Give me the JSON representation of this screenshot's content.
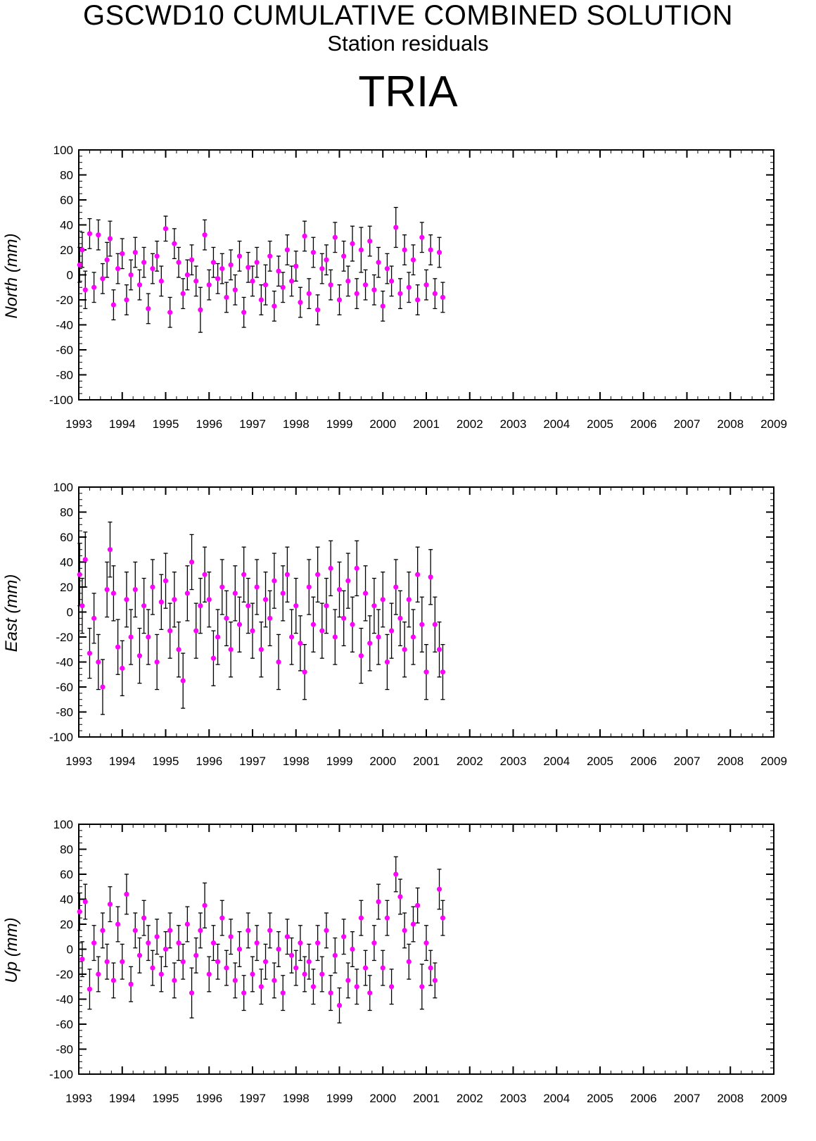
{
  "header": {
    "title": "GSCWD10 CUMULATIVE COMBINED SOLUTION",
    "subtitle": "Station residuals",
    "station": "TRIA"
  },
  "colors": {
    "marker": "#ff00ff",
    "errorbar": "#000000",
    "axis": "#000000"
  },
  "chart_data": [
    {
      "type": "scatter",
      "ylabel": "North (mm)",
      "xlim": [
        1993,
        2009
      ],
      "ylim": [
        -100,
        100
      ],
      "xticks": [
        "1993",
        "1994",
        "1995",
        "1996",
        "1997",
        "1998",
        "1999",
        "2000",
        "2001",
        "2002",
        "2003",
        "2004",
        "2005",
        "2006",
        "2007",
        "2008",
        "2009"
      ],
      "yticks": [
        "100",
        "80",
        "60",
        "40",
        "20",
        "0",
        "-20",
        "-40",
        "-60",
        "-80",
        "-100"
      ],
      "error_bars": true,
      "series": [
        {
          "x": [
            1993.02,
            1993.08,
            1993.15,
            1993.25,
            1993.35,
            1993.45,
            1993.55,
            1993.65,
            1993.72,
            1993.8,
            1993.9,
            1994.0,
            1994.1,
            1994.2,
            1994.3,
            1994.4,
            1994.5,
            1994.6,
            1994.7,
            1994.8,
            1994.9,
            1995.0,
            1995.1,
            1995.2,
            1995.3,
            1995.4,
            1995.5,
            1995.6,
            1995.7,
            1995.8,
            1995.9,
            1996.0,
            1996.1,
            1996.2,
            1996.3,
            1996.4,
            1996.5,
            1996.6,
            1996.7,
            1996.8,
            1996.9,
            1997.0,
            1997.1,
            1997.2,
            1997.3,
            1997.4,
            1997.5,
            1997.6,
            1997.7,
            1997.8,
            1997.9,
            1998.0,
            1998.1,
            1998.2,
            1998.3,
            1998.4,
            1998.5,
            1998.6,
            1998.7,
            1998.8,
            1998.9,
            1999.0,
            1999.1,
            1999.2,
            1999.3,
            1999.4,
            1999.5,
            1999.6,
            1999.7,
            1999.8,
            1999.9,
            2000.0,
            2000.1,
            2000.2,
            2000.3,
            2000.4,
            2000.5,
            2000.6,
            2000.7,
            2000.8,
            2000.9,
            2001.0,
            2001.1,
            2001.2,
            2001.3,
            2001.38
          ],
          "y": [
            8,
            20,
            -12,
            33,
            -10,
            32,
            -3,
            12,
            29,
            -24,
            5,
            17,
            -20,
            0,
            18,
            -8,
            10,
            -27,
            5,
            15,
            -5,
            37,
            -30,
            25,
            10,
            -15,
            0,
            12,
            -5,
            -28,
            32,
            -8,
            10,
            -3,
            5,
            -18,
            8,
            -12,
            15,
            -30,
            6,
            -5,
            10,
            -20,
            -8,
            15,
            -25,
            3,
            -10,
            20,
            -5,
            7,
            -22,
            31,
            -15,
            18,
            -28,
            5,
            12,
            -8,
            30,
            -20,
            15,
            -5,
            25,
            -15,
            20,
            -8,
            27,
            -12,
            10,
            -25,
            5,
            -5,
            38,
            -15,
            20,
            -10,
            12,
            -20,
            30,
            -8,
            20,
            -15,
            18,
            -18
          ],
          "err": [
            14,
            14,
            15,
            12,
            12,
            12,
            12,
            14,
            14,
            12,
            12,
            12,
            12,
            12,
            12,
            12,
            12,
            12,
            12,
            12,
            12,
            10,
            12,
            12,
            12,
            12,
            12,
            12,
            12,
            18,
            12,
            12,
            12,
            12,
            12,
            12,
            12,
            12,
            12,
            12,
            12,
            12,
            12,
            12,
            16,
            12,
            12,
            12,
            12,
            12,
            12,
            12,
            12,
            12,
            12,
            12,
            12,
            12,
            12,
            12,
            12,
            12,
            12,
            12,
            14,
            12,
            18,
            12,
            12,
            12,
            12,
            12,
            12,
            12,
            16,
            12,
            12,
            12,
            12,
            12,
            12,
            12,
            12,
            12,
            12,
            12
          ]
        }
      ]
    },
    {
      "type": "scatter",
      "ylabel": "East (mm)",
      "xlim": [
        1993,
        2009
      ],
      "ylim": [
        -100,
        100
      ],
      "xticks": [
        "1993",
        "1994",
        "1995",
        "1996",
        "1997",
        "1998",
        "1999",
        "2000",
        "2001",
        "2002",
        "2003",
        "2004",
        "2005",
        "2006",
        "2007",
        "2008",
        "2009"
      ],
      "yticks": [
        "100",
        "80",
        "60",
        "40",
        "20",
        "0",
        "-20",
        "-40",
        "-60",
        "-80",
        "-100"
      ],
      "error_bars": true,
      "series": [
        {
          "x": [
            1993.02,
            1993.08,
            1993.15,
            1993.25,
            1993.35,
            1993.45,
            1993.55,
            1993.65,
            1993.72,
            1993.8,
            1993.9,
            1994.0,
            1994.1,
            1994.2,
            1994.3,
            1994.4,
            1994.5,
            1994.6,
            1994.7,
            1994.8,
            1994.9,
            1995.0,
            1995.1,
            1995.2,
            1995.3,
            1995.4,
            1995.5,
            1995.6,
            1995.7,
            1995.8,
            1995.9,
            1996.0,
            1996.1,
            1996.2,
            1996.3,
            1996.4,
            1996.5,
            1996.6,
            1996.7,
            1996.8,
            1996.9,
            1997.0,
            1997.1,
            1997.2,
            1997.3,
            1997.4,
            1997.5,
            1997.6,
            1997.7,
            1997.8,
            1997.9,
            1998.0,
            1998.1,
            1998.2,
            1998.3,
            1998.4,
            1998.5,
            1998.6,
            1998.7,
            1998.8,
            1998.9,
            1999.0,
            1999.1,
            1999.2,
            1999.3,
            1999.4,
            1999.5,
            1999.6,
            1999.7,
            1999.8,
            1999.9,
            2000.0,
            2000.1,
            2000.2,
            2000.3,
            2000.4,
            2000.5,
            2000.6,
            2000.7,
            2000.8,
            2000.9,
            2001.0,
            2001.1,
            2001.2,
            2001.3,
            2001.38
          ],
          "y": [
            30,
            5,
            42,
            -33,
            -5,
            -40,
            -60,
            18,
            50,
            15,
            -28,
            -45,
            10,
            -20,
            18,
            -35,
            5,
            -20,
            20,
            -40,
            8,
            25,
            -15,
            10,
            -30,
            -55,
            15,
            40,
            -15,
            5,
            30,
            10,
            -37,
            -20,
            20,
            -5,
            -30,
            15,
            -10,
            30,
            5,
            -15,
            20,
            -30,
            10,
            -5,
            25,
            -40,
            15,
            30,
            -20,
            5,
            -25,
            -48,
            20,
            -10,
            30,
            -15,
            5,
            35,
            -20,
            18,
            -5,
            25,
            -10,
            35,
            -35,
            15,
            -25,
            5,
            -20,
            10,
            -40,
            -15,
            20,
            -5,
            -30,
            10,
            -20,
            30,
            -10,
            -48,
            28,
            -10,
            -30,
            -48
          ],
          "err": [
            25,
            22,
            22,
            20,
            20,
            22,
            22,
            22,
            22,
            22,
            22,
            22,
            22,
            22,
            22,
            22,
            22,
            22,
            22,
            22,
            22,
            22,
            22,
            22,
            22,
            22,
            22,
            22,
            22,
            22,
            22,
            22,
            22,
            22,
            22,
            22,
            22,
            22,
            22,
            22,
            22,
            22,
            22,
            22,
            22,
            22,
            22,
            22,
            22,
            22,
            22,
            22,
            22,
            22,
            22,
            22,
            22,
            22,
            22,
            22,
            22,
            22,
            22,
            22,
            22,
            22,
            22,
            22,
            22,
            22,
            22,
            22,
            22,
            22,
            22,
            22,
            22,
            22,
            22,
            22,
            22,
            22,
            22,
            22,
            22,
            22
          ]
        }
      ]
    },
    {
      "type": "scatter",
      "ylabel": "Up (mm)",
      "xlim": [
        1993,
        2009
      ],
      "ylim": [
        -100,
        100
      ],
      "xticks": [
        "1993",
        "1994",
        "1995",
        "1996",
        "1997",
        "1998",
        "1999",
        "2000",
        "2001",
        "2002",
        "2003",
        "2004",
        "2005",
        "2006",
        "2007",
        "2008",
        "2009"
      ],
      "yticks": [
        "100",
        "80",
        "60",
        "40",
        "20",
        "0",
        "-20",
        "-40",
        "-60",
        "-80",
        "-100"
      ],
      "error_bars": true,
      "series": [
        {
          "x": [
            1993.02,
            1993.08,
            1993.15,
            1993.25,
            1993.35,
            1993.45,
            1993.55,
            1993.65,
            1993.72,
            1993.8,
            1993.9,
            1994.0,
            1994.1,
            1994.2,
            1994.3,
            1994.4,
            1994.5,
            1994.6,
            1994.7,
            1994.8,
            1994.9,
            1995.0,
            1995.1,
            1995.2,
            1995.3,
            1995.4,
            1995.5,
            1995.6,
            1995.7,
            1995.8,
            1995.9,
            1996.0,
            1996.1,
            1996.2,
            1996.3,
            1996.4,
            1996.5,
            1996.6,
            1996.7,
            1996.8,
            1996.9,
            1997.0,
            1997.1,
            1997.2,
            1997.3,
            1997.4,
            1997.5,
            1997.6,
            1997.7,
            1997.8,
            1997.9,
            1998.0,
            1998.1,
            1998.2,
            1998.3,
            1998.4,
            1998.5,
            1998.6,
            1998.7,
            1998.8,
            1998.9,
            1999.0,
            1999.1,
            1999.2,
            1999.3,
            1999.4,
            1999.5,
            1999.6,
            1999.7,
            1999.8,
            1999.9,
            2000.0,
            2000.1,
            2000.2,
            2000.3,
            2000.4,
            2000.5,
            2000.6,
            2000.7,
            2000.8,
            2000.9,
            2001.0,
            2001.1,
            2001.2,
            2001.3,
            2001.38
          ],
          "y": [
            30,
            -8,
            38,
            -32,
            5,
            -20,
            15,
            -10,
            36,
            -25,
            20,
            -10,
            44,
            -28,
            15,
            -5,
            25,
            5,
            -15,
            10,
            -20,
            0,
            15,
            -25,
            5,
            -10,
            20,
            -35,
            -5,
            15,
            35,
            -20,
            5,
            -10,
            25,
            -15,
            10,
            -25,
            0,
            -35,
            15,
            -20,
            5,
            -30,
            -10,
            15,
            -25,
            0,
            -35,
            10,
            -5,
            -15,
            5,
            -20,
            -10,
            -30,
            5,
            -20,
            15,
            -35,
            -5,
            -45,
            10,
            -25,
            0,
            -30,
            25,
            -15,
            -35,
            5,
            38,
            -15,
            25,
            -30,
            60,
            42,
            15,
            -10,
            20,
            35,
            -30,
            5,
            -15,
            -25,
            48,
            25
          ],
          "err": [
            15,
            14,
            14,
            16,
            14,
            14,
            14,
            14,
            14,
            14,
            14,
            14,
            16,
            14,
            14,
            14,
            14,
            14,
            14,
            14,
            14,
            14,
            14,
            14,
            14,
            14,
            14,
            20,
            14,
            14,
            18,
            14,
            14,
            14,
            14,
            14,
            14,
            14,
            14,
            14,
            14,
            14,
            14,
            14,
            14,
            14,
            14,
            14,
            14,
            14,
            14,
            14,
            14,
            14,
            14,
            14,
            14,
            14,
            14,
            14,
            14,
            14,
            14,
            14,
            14,
            14,
            14,
            14,
            14,
            14,
            14,
            14,
            14,
            14,
            14,
            14,
            14,
            14,
            14,
            14,
            18,
            14,
            14,
            14,
            16,
            14
          ]
        }
      ]
    }
  ]
}
